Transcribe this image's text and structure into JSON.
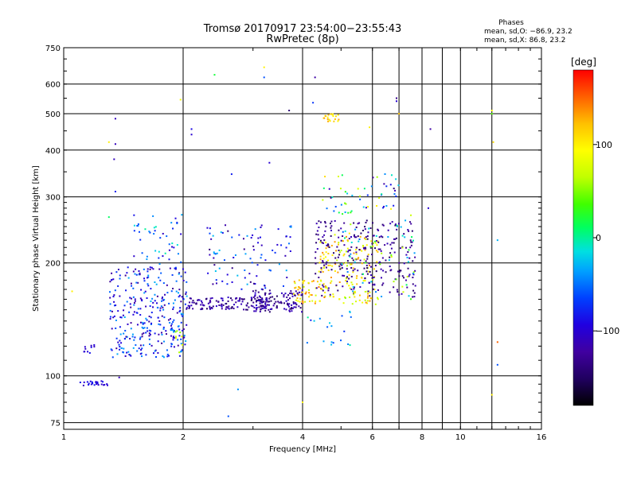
{
  "chart_data": {
    "type": "scatter",
    "title": "Tromsø 20170917 23:54:00−23:55:43",
    "subtitle": "RwPretec (8p)",
    "xlabel": "Frequency [MHz]",
    "ylabel": "Stationary phase Virtual Height [km]",
    "x_scale": "log",
    "y_scale": "log",
    "xlim": [
      1,
      16
    ],
    "ylim": [
      72,
      750
    ],
    "x_ticks": [
      1,
      2,
      4,
      6,
      8,
      10,
      16
    ],
    "x_tick_labels": [
      "1",
      "2",
      "4",
      "6",
      "8",
      "10",
      "16"
    ],
    "y_ticks": [
      75,
      100,
      200,
      300,
      400,
      500,
      600,
      750
    ],
    "y_tick_labels": [
      "75",
      "100",
      "200",
      "300",
      "400",
      "500",
      "600",
      "750"
    ],
    "grid": true,
    "extra_vertical_grid": [
      7,
      9,
      12
    ],
    "info": {
      "header": "Phases",
      "line_o": "mean, sd,O: −86.9, 23.2",
      "line_x": "mean, sd,X:  86.8, 23.2"
    },
    "colorbar": {
      "label": "[deg]",
      "range": [
        -180,
        180
      ],
      "ticks": [
        100,
        0,
        -100
      ],
      "tick_labels": [
        "100",
        "0",
        "−100"
      ]
    },
    "clusters": [
      {
        "x": [
          1.1,
          1.3
        ],
        "y": [
          94,
          97
        ],
        "n": 26,
        "phase": [
          -110,
          -80
        ]
      },
      {
        "x": [
          1.12,
          1.2
        ],
        "y": [
          115,
          121
        ],
        "n": 10,
        "phase": [
          -115,
          -85
        ]
      },
      {
        "x": [
          1.3,
          2.05
        ],
        "y": [
          112,
          195
        ],
        "n": 330,
        "phase": [
          -130,
          -30
        ]
      },
      {
        "x": [
          1.5,
          2.0
        ],
        "y": [
          195,
          270
        ],
        "n": 45,
        "phase": [
          -110,
          0
        ]
      },
      {
        "x": [
          1.9,
          2.0
        ],
        "y": [
          115,
          135
        ],
        "n": 8,
        "phase": [
          40,
          110
        ]
      },
      {
        "x": [
          2.05,
          3.3
        ],
        "y": [
          150,
          162
        ],
        "n": 130,
        "phase": [
          -150,
          -100
        ]
      },
      {
        "x": [
          2.3,
          3.8
        ],
        "y": [
          170,
          255
        ],
        "n": 90,
        "phase": [
          -140,
          -20
        ]
      },
      {
        "x": [
          3.0,
          4.0
        ],
        "y": [
          148,
          170
        ],
        "n": 120,
        "phase": [
          -150,
          -100
        ]
      },
      {
        "x": [
          3.8,
          4.6
        ],
        "y": [
          155,
          180
        ],
        "n": 60,
        "phase": [
          70,
          150
        ]
      },
      {
        "x": [
          4.4,
          6.2
        ],
        "y": [
          155,
          240
        ],
        "n": 150,
        "phase": [
          60,
          140
        ]
      },
      {
        "x": [
          4.3,
          7.7
        ],
        "y": [
          162,
          260
        ],
        "n": 260,
        "phase": [
          -150,
          -110
        ]
      },
      {
        "x": [
          5.0,
          7.7
        ],
        "y": [
          160,
          260
        ],
        "n": 60,
        "phase": [
          -60,
          80
        ]
      },
      {
        "x": [
          4.4,
          7.0
        ],
        "y": [
          270,
          350
        ],
        "n": 55,
        "phase": [
          -140,
          110
        ]
      },
      {
        "x": [
          4.5,
          4.95
        ],
        "y": [
          475,
          500
        ],
        "n": 20,
        "phase": [
          95,
          135
        ]
      },
      {
        "x": [
          4.05,
          5.3
        ],
        "y": [
          118,
          150
        ],
        "n": 20,
        "phase": [
          -80,
          0
        ]
      }
    ],
    "sparse_points": [
      {
        "x": 1.05,
        "y": 168,
        "phase": 100
      },
      {
        "x": 1.3,
        "y": 420,
        "phase": 100
      },
      {
        "x": 1.3,
        "y": 265,
        "phase": 10
      },
      {
        "x": 1.35,
        "y": 485,
        "phase": -110
      },
      {
        "x": 1.35,
        "y": 415,
        "phase": -110
      },
      {
        "x": 1.34,
        "y": 378,
        "phase": -110
      },
      {
        "x": 1.35,
        "y": 310,
        "phase": -80
      },
      {
        "x": 1.38,
        "y": 99,
        "phase": -110
      },
      {
        "x": 1.97,
        "y": 545,
        "phase": 90
      },
      {
        "x": 2.1,
        "y": 455,
        "phase": -90
      },
      {
        "x": 2.1,
        "y": 440,
        "phase": -100
      },
      {
        "x": 2.4,
        "y": 635,
        "phase": 20
      },
      {
        "x": 2.65,
        "y": 345,
        "phase": -80
      },
      {
        "x": 2.75,
        "y": 92,
        "phase": -40
      },
      {
        "x": 2.6,
        "y": 78,
        "phase": -60
      },
      {
        "x": 3.2,
        "y": 665,
        "phase": 100
      },
      {
        "x": 3.2,
        "y": 625,
        "phase": -60
      },
      {
        "x": 3.3,
        "y": 370,
        "phase": -100
      },
      {
        "x": 3.7,
        "y": 510,
        "phase": -140
      },
      {
        "x": 4.0,
        "y": 85,
        "phase": 100
      },
      {
        "x": 4.3,
        "y": 625,
        "phase": -120
      },
      {
        "x": 4.25,
        "y": 535,
        "phase": -70
      },
      {
        "x": 5.9,
        "y": 460,
        "phase": 100
      },
      {
        "x": 6.9,
        "y": 550,
        "phase": -130
      },
      {
        "x": 6.9,
        "y": 540,
        "phase": -100
      },
      {
        "x": 7.0,
        "y": 500,
        "phase": 120
      },
      {
        "x": 8.4,
        "y": 455,
        "phase": -120
      },
      {
        "x": 12.0,
        "y": 510,
        "phase": 100
      },
      {
        "x": 12.0,
        "y": 500,
        "phase": 40
      },
      {
        "x": 12.1,
        "y": 420,
        "phase": 110
      },
      {
        "x": 12.4,
        "y": 230,
        "phase": -30
      },
      {
        "x": 12.4,
        "y": 123,
        "phase": 150
      },
      {
        "x": 12.4,
        "y": 107,
        "phase": -60
      },
      {
        "x": 12.0,
        "y": 89,
        "phase": 100
      },
      {
        "x": 7.5,
        "y": 268,
        "phase": 70
      },
      {
        "x": 8.3,
        "y": 280,
        "phase": -100
      }
    ]
  }
}
